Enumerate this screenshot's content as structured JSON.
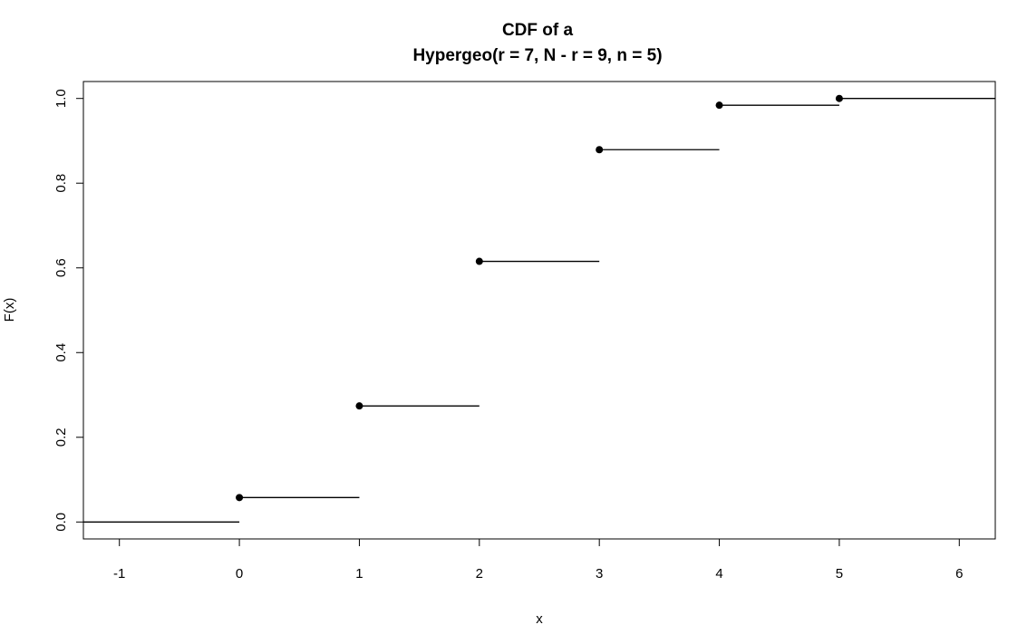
{
  "chart_data": {
    "type": "line",
    "subtype": "step-cdf",
    "title_line1": "CDF of a",
    "title_line2": "Hypergeo(r = 7,  N - r = 9, n = 5)",
    "xlabel": "x",
    "ylabel": "F(x)",
    "xlim": [
      -1.3,
      6.3
    ],
    "ylim": [
      -0.04,
      1.04
    ],
    "x_ticks": [
      "-1",
      "0",
      "1",
      "2",
      "3",
      "4",
      "5",
      "6"
    ],
    "y_ticks": [
      "0.0",
      "0.2",
      "0.4",
      "0.6",
      "0.8",
      "1.0"
    ],
    "grid": false,
    "legend": "none",
    "x": [
      0,
      1,
      2,
      3,
      4,
      5
    ],
    "y": [
      0.0577,
      0.274,
      0.6154,
      0.8791,
      0.984,
      1.0
    ],
    "line_color": "#000000",
    "point_color": "#000000"
  }
}
